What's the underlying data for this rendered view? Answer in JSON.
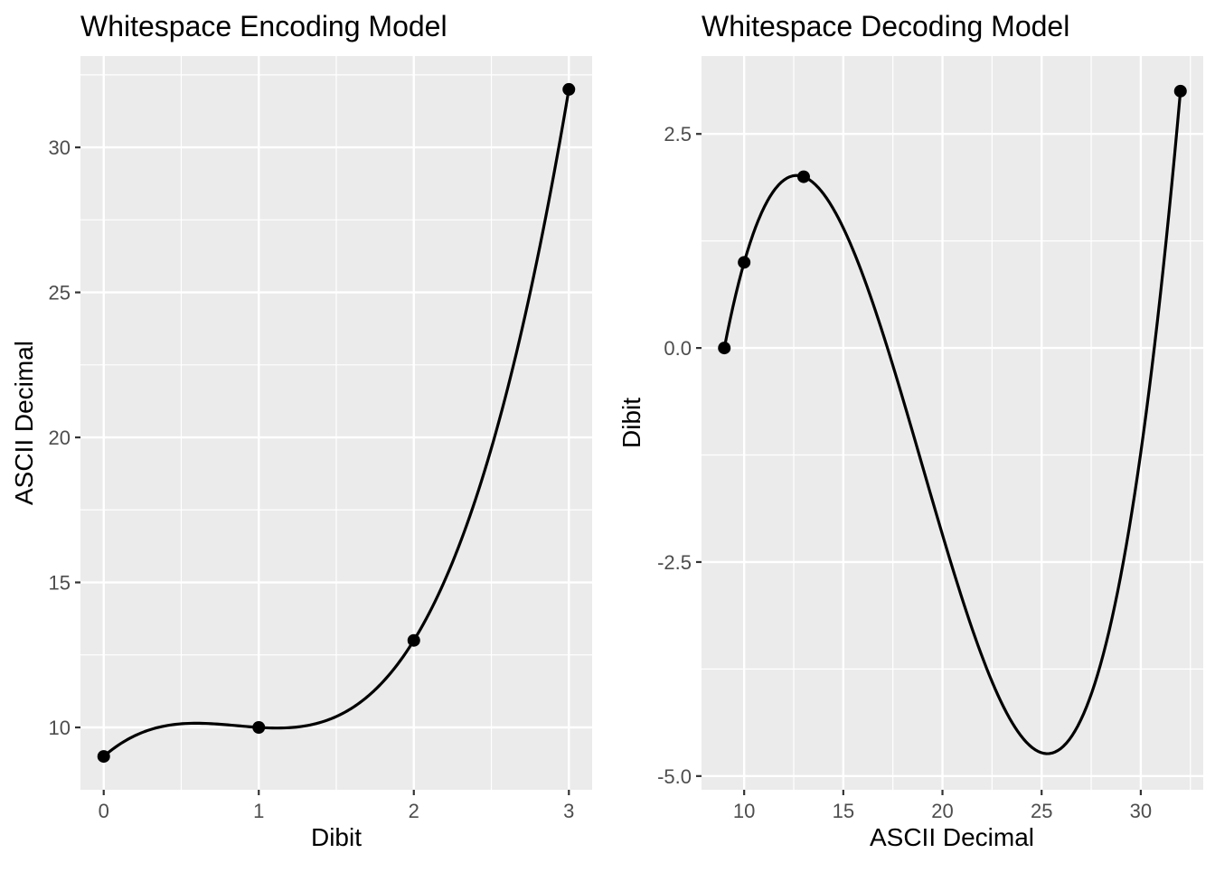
{
  "figure_title": "Whitespace encoding/decoding model plots",
  "style": {
    "panel_background": "#EBEBEB",
    "gridline_color": "#FFFFFF",
    "curve_color": "#000000",
    "point_color": "#000000",
    "tick_mark_color": "#333333",
    "tick_label_color": "#4D4D4D",
    "title_color": "#000000",
    "plot_background": "#FFFFFF"
  },
  "chart_data": [
    {
      "id": "encoding",
      "type": "line",
      "title": "Whitespace Encoding Model",
      "xlabel": "Dibit",
      "ylabel": "ASCII Decimal",
      "smooth_method": "cubic interpolation through data points",
      "points": [
        [
          0,
          9
        ],
        [
          1,
          10
        ],
        [
          2,
          13
        ],
        [
          3,
          32
        ]
      ],
      "x_ticks": [
        0,
        1,
        2,
        3
      ],
      "x_tick_labels": [
        "0",
        "1",
        "2",
        "3"
      ],
      "y_ticks": [
        10,
        15,
        20,
        25,
        30
      ],
      "y_tick_labels": [
        "10",
        "15",
        "20",
        "25",
        "30"
      ],
      "x_minor": [
        0.5,
        1.5,
        2.5
      ],
      "y_minor": [
        12.5,
        17.5,
        22.5,
        27.5,
        32.5
      ],
      "xlim": [
        -0.15,
        3.15
      ],
      "ylim": [
        7.85,
        33.15
      ],
      "grid": true,
      "legend": "none"
    },
    {
      "id": "decoding",
      "type": "line",
      "title": "Whitespace Decoding Model",
      "xlabel": "ASCII Decimal",
      "ylabel": "Dibit",
      "smooth_method": "cubic interpolation through data points",
      "points": [
        [
          9,
          0
        ],
        [
          10,
          1
        ],
        [
          13,
          2
        ],
        [
          32,
          3
        ]
      ],
      "x_ticks": [
        10,
        15,
        20,
        25,
        30
      ],
      "x_tick_labels": [
        "10",
        "15",
        "20",
        "25",
        "30"
      ],
      "y_ticks": [
        2.5,
        0,
        -2.5,
        -5
      ],
      "y_tick_labels": [
        "2.5",
        "0.0",
        "-2.5",
        "-5.0"
      ],
      "x_minor": [
        12.5,
        17.5,
        22.5,
        27.5,
        32.5
      ],
      "y_minor": [
        1.25,
        -1.25,
        -3.75
      ],
      "xlim": [
        7.85,
        33.15
      ],
      "ylim": [
        -5.16,
        3.41
      ],
      "grid": true,
      "legend": "none",
      "curve_min_approx": {
        "x": 25.3,
        "y": -4.74
      },
      "curve_max_approx": {
        "x": 12.5,
        "y": 2.01
      }
    }
  ]
}
